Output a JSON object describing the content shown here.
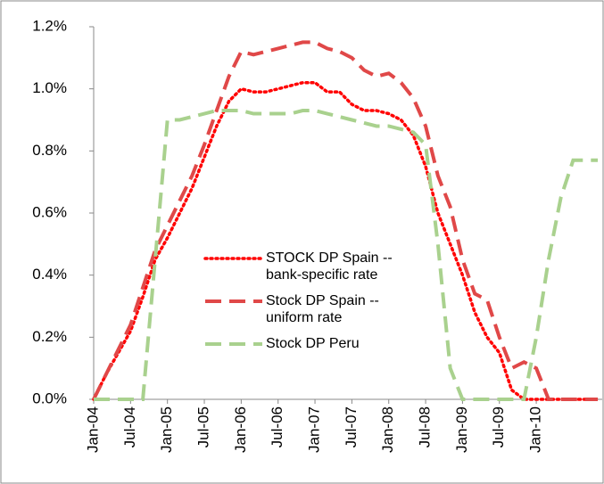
{
  "chart_data": {
    "type": "line",
    "categories": [
      "Jan-04",
      null,
      null,
      "Jul-04",
      null,
      null,
      "Jan-05",
      null,
      null,
      "Jul-05",
      null,
      null,
      "Jan-06",
      null,
      null,
      "Jul-06",
      null,
      null,
      "Jan-07",
      null,
      null,
      "Jul-07",
      null,
      null,
      "Jan-08",
      null,
      null,
      "Jul-08",
      null,
      null,
      "Jan-09",
      null,
      null,
      "Jul-09",
      null,
      null,
      "Jan-10",
      null,
      null,
      null,
      null,
      null
    ],
    "series": [
      {
        "name": "STOCK DP Spain -- bank-specific rate",
        "color": "#ff0000",
        "style": "dotted",
        "values": [
          0,
          0.08,
          0.15,
          0.22,
          0.33,
          0.45,
          0.52,
          0.6,
          0.68,
          0.78,
          0.88,
          0.96,
          1.0,
          0.99,
          0.99,
          1.0,
          1.01,
          1.02,
          1.02,
          0.99,
          0.99,
          0.95,
          0.93,
          0.93,
          0.92,
          0.9,
          0.85,
          0.75,
          0.6,
          0.5,
          0.4,
          0.28,
          0.2,
          0.15,
          0.03,
          0,
          0,
          0,
          0,
          0,
          0,
          0
        ]
      },
      {
        "name": "Stock DP Spain -- uniform rate",
        "color": "#e04848",
        "style": "dashed",
        "values": [
          0,
          0.08,
          0.16,
          0.24,
          0.36,
          0.48,
          0.56,
          0.64,
          0.72,
          0.82,
          0.93,
          1.04,
          1.12,
          1.11,
          1.12,
          1.13,
          1.14,
          1.15,
          1.15,
          1.13,
          1.12,
          1.1,
          1.06,
          1.04,
          1.05,
          1.02,
          0.97,
          0.88,
          0.72,
          0.62,
          0.45,
          0.34,
          0.32,
          0.2,
          0.1,
          0.12,
          0.1,
          0,
          0,
          0,
          0,
          0
        ]
      },
      {
        "name": "Stock DP Peru",
        "color": "#a9d18e",
        "style": "dashed",
        "values": [
          0,
          0,
          0,
          0,
          0,
          0.45,
          0.9,
          0.9,
          0.91,
          0.92,
          0.93,
          0.93,
          0.93,
          0.92,
          0.92,
          0.92,
          0.92,
          0.93,
          0.93,
          0.92,
          0.91,
          0.9,
          0.89,
          0.88,
          0.88,
          0.87,
          0.86,
          0.82,
          0.5,
          0.1,
          0,
          0,
          0,
          0,
          0,
          0,
          0.2,
          0.45,
          0.65,
          0.77,
          0.77,
          0.77
        ]
      }
    ],
    "ylim": [
      0,
      1.2
    ],
    "yticks": [
      {
        "value": 0,
        "label": "0.0%"
      },
      {
        "value": 0.2,
        "label": "0.2%"
      },
      {
        "value": 0.4,
        "label": "0.4%"
      },
      {
        "value": 0.6,
        "label": "0.6%"
      },
      {
        "value": 0.8,
        "label": "0.8%"
      },
      {
        "value": 1.0,
        "label": "1.0%"
      },
      {
        "value": 1.2,
        "label": "1.2%"
      }
    ],
    "grid": false
  }
}
